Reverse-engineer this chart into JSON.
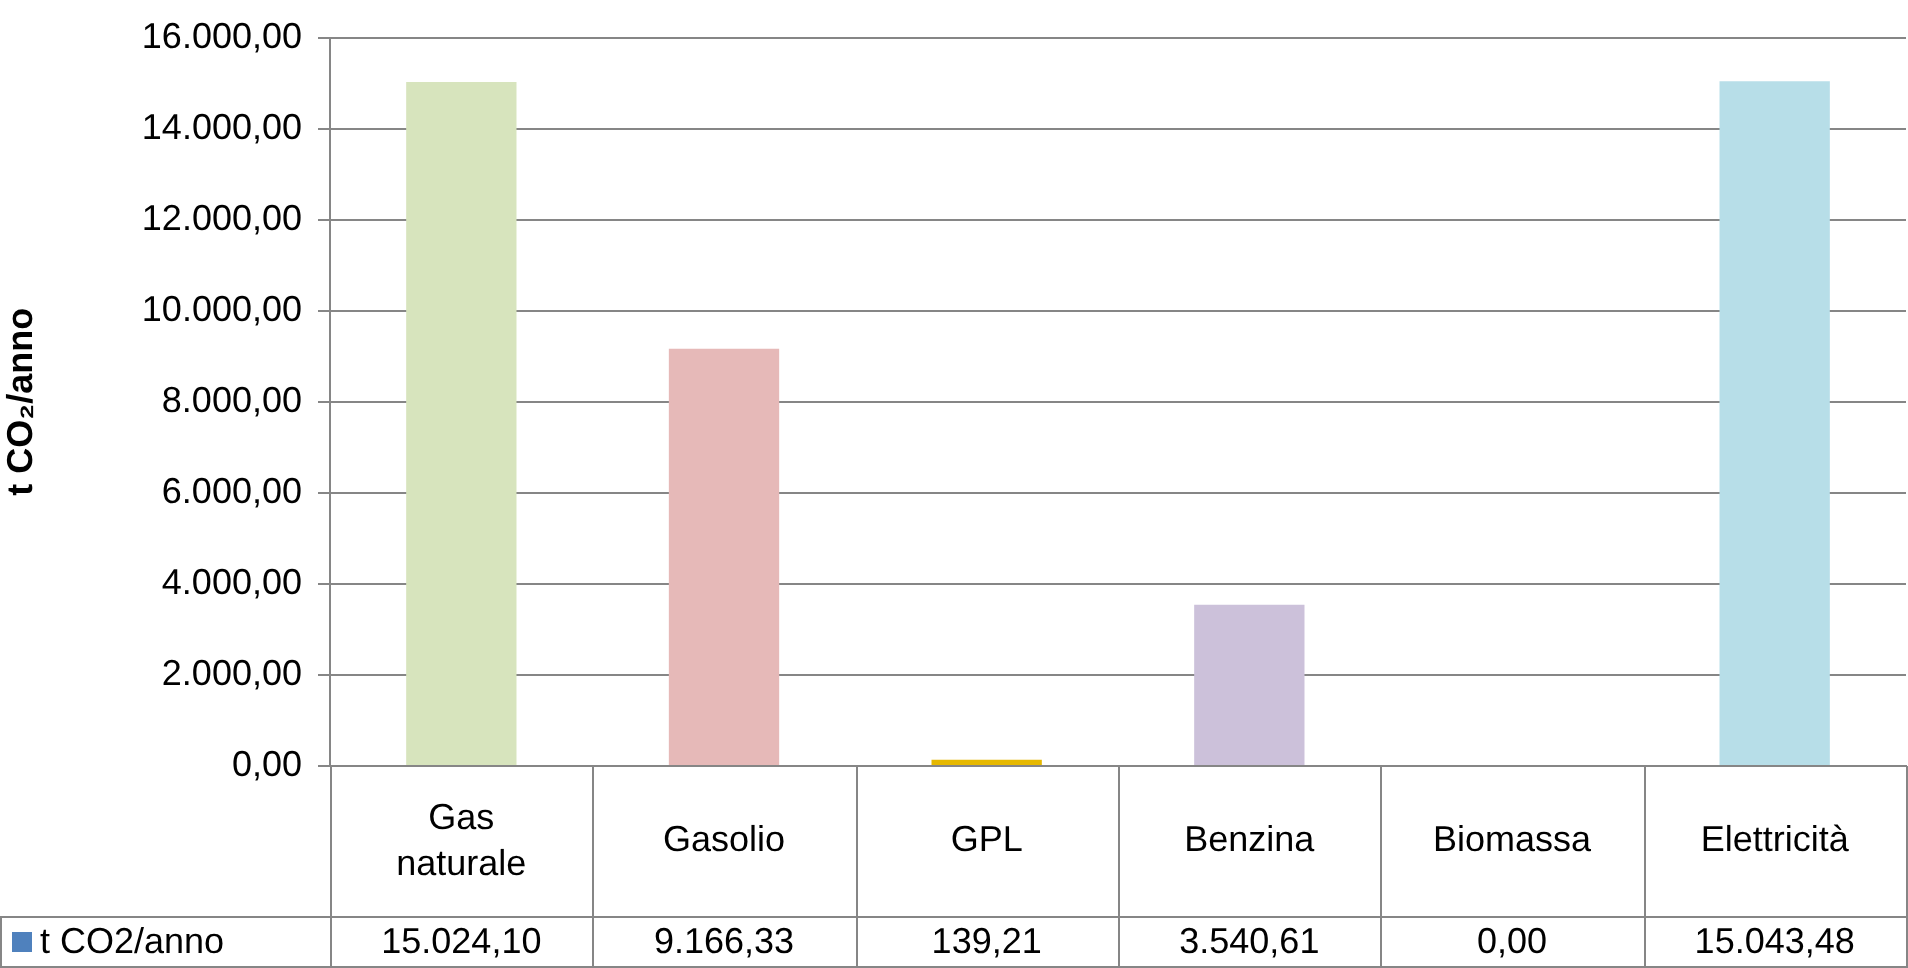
{
  "chart_data": {
    "type": "bar",
    "ylabel": "t CO₂/anno",
    "categories": [
      "Gas naturale",
      "Gasolio",
      "GPL",
      "Benzina",
      "Biomassa",
      "Elettricità"
    ],
    "series": [
      {
        "name": "t CO2/anno",
        "color": "#4f81bd",
        "colors": [
          "#d7e4bd",
          "#e6b9b8",
          "#e6b800",
          "#ccc1da",
          "#fac090",
          "#b7dee8"
        ],
        "values": [
          15024.1,
          9166.33,
          139.21,
          3540.61,
          0,
          15043.48
        ],
        "value_labels": [
          "15.024,10",
          "9.166,33",
          "139,21",
          "3.540,61",
          "0,00",
          "15.043,48"
        ]
      }
    ],
    "ylim": [
      0,
      16000
    ],
    "yticks": [
      {
        "value": 0,
        "label": "0,00"
      },
      {
        "value": 2000,
        "label": "2.000,00"
      },
      {
        "value": 4000,
        "label": "4.000,00"
      },
      {
        "value": 6000,
        "label": "6.000,00"
      },
      {
        "value": 8000,
        "label": "8.000,00"
      },
      {
        "value": 10000,
        "label": "10.000,00"
      },
      {
        "value": 12000,
        "label": "12.000,00"
      },
      {
        "value": 14000,
        "label": "14.000,00"
      },
      {
        "value": 16000,
        "label": "16.000,00"
      }
    ],
    "grid": "y",
    "legend": "bottom left"
  }
}
